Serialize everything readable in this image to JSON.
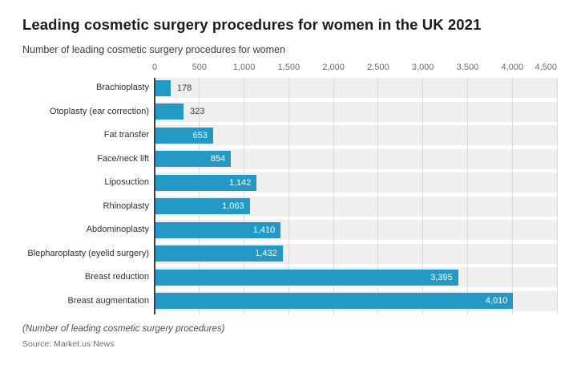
{
  "chart_data": {
    "type": "bar",
    "orientation": "horizontal",
    "title": "Leading cosmetic surgery procedures for women in the UK 2021",
    "subtitle": "Number of leading cosmetic surgery procedures for women",
    "footnote": "(Number of leading cosmetic surgery procedures)",
    "source": "Source: Market.us News",
    "categories": [
      "Brachioplasty",
      "Otoplasty (ear correction)",
      "Fat transfer",
      "Face/neck lift",
      "Liposuction",
      "Rhinoplasty",
      "Abdominoplasty",
      "Blepharoplasty (eyelid surgery)",
      "Breast reduction",
      "Breast augmentation"
    ],
    "values": [
      178,
      323,
      653,
      854,
      1142,
      1063,
      1410,
      1432,
      3395,
      4010
    ],
    "value_labels": [
      "178",
      "323",
      "653",
      "854",
      "1,142",
      "1,063",
      "1,410",
      "1,432",
      "3,395",
      "4,010"
    ],
    "xlabel": "",
    "ylabel": "",
    "xlim": [
      0,
      4500
    ],
    "x_ticks": [
      0,
      500,
      1000,
      1500,
      2000,
      2500,
      3000,
      3500,
      4000,
      4500
    ],
    "x_tick_labels": [
      "0",
      "500",
      "1,000",
      "1,500",
      "2,000",
      "2,500",
      "3,000",
      "3,500",
      "4,000",
      "4,500"
    ],
    "grid": "vertical",
    "legend": "none",
    "colors": {
      "bar": "#2499c6",
      "row_band": "#efefef",
      "grid_line": "#dcdcdc",
      "zero_axis_line": "#3f3f3f",
      "value_inside": "#ffffff",
      "value_outside": "#3c3c3c"
    }
  }
}
